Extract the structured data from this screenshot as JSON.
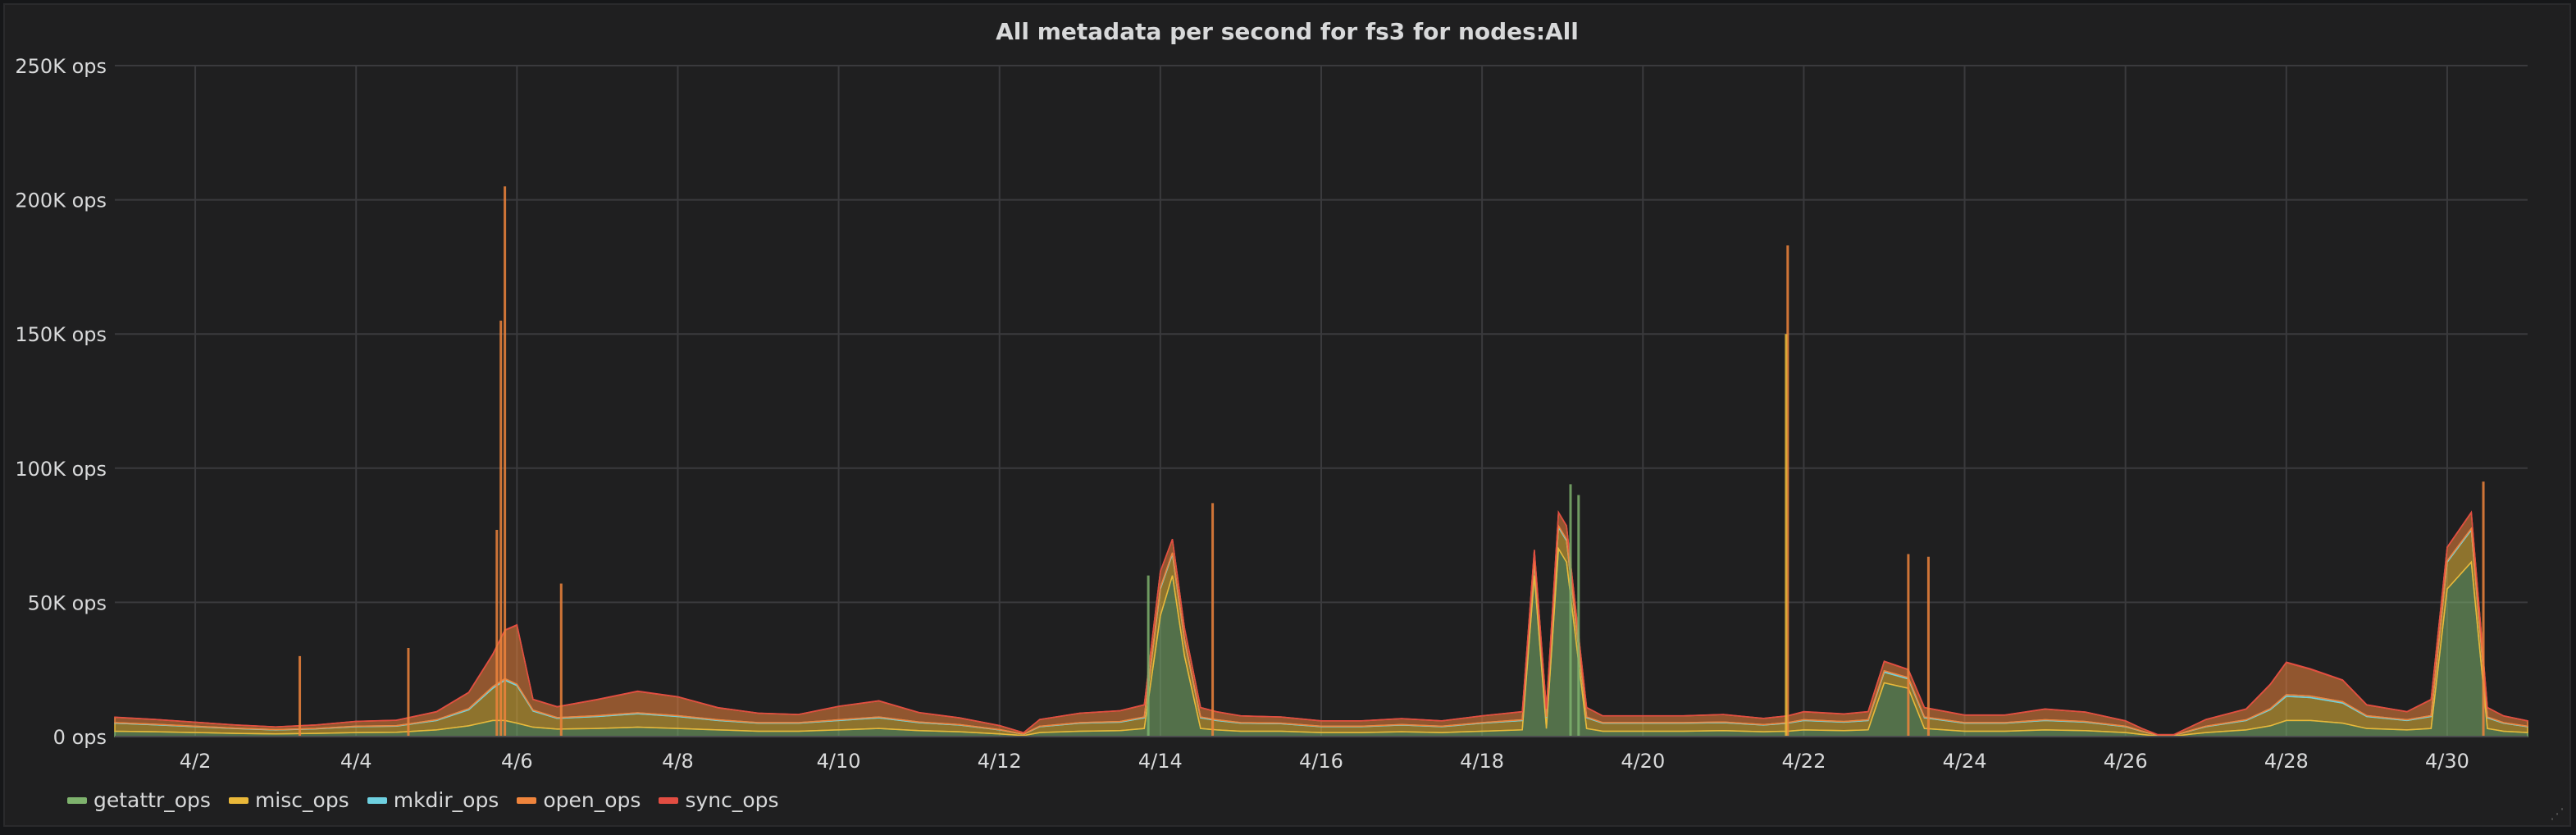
{
  "panel": {
    "title": "All metadata per second for fs3 for nodes:All"
  },
  "chart_data": {
    "type": "area",
    "stacked": true,
    "title": "All metadata per second for fs3 for nodes:All",
    "xlabel": "",
    "ylabel": "",
    "x_domain": [
      1.0,
      31.0
    ],
    "ylim": [
      0,
      250000
    ],
    "y_ticks": [
      {
        "value": 0,
        "label": "0 ops"
      },
      {
        "value": 50000,
        "label": "50K ops"
      },
      {
        "value": 100000,
        "label": "100K ops"
      },
      {
        "value": 150000,
        "label": "150K ops"
      },
      {
        "value": 200000,
        "label": "200K ops"
      },
      {
        "value": 250000,
        "label": "250K ops"
      }
    ],
    "x_ticks": [
      {
        "value": 2,
        "label": "4/2"
      },
      {
        "value": 4,
        "label": "4/4"
      },
      {
        "value": 6,
        "label": "4/6"
      },
      {
        "value": 8,
        "label": "4/8"
      },
      {
        "value": 10,
        "label": "4/10"
      },
      {
        "value": 12,
        "label": "4/12"
      },
      {
        "value": 14,
        "label": "4/14"
      },
      {
        "value": 16,
        "label": "4/16"
      },
      {
        "value": 18,
        "label": "4/18"
      },
      {
        "value": 20,
        "label": "4/20"
      },
      {
        "value": 22,
        "label": "4/22"
      },
      {
        "value": 24,
        "label": "4/24"
      },
      {
        "value": 26,
        "label": "4/26"
      },
      {
        "value": 28,
        "label": "4/28"
      },
      {
        "value": 30,
        "label": "4/30"
      }
    ],
    "grid": true,
    "legend_position": "bottom-left",
    "x": [
      1.0,
      1.5,
      2.0,
      2.5,
      3.0,
      3.5,
      4.0,
      4.5,
      5.0,
      5.4,
      5.7,
      5.85,
      6.0,
      6.2,
      6.5,
      7.0,
      7.5,
      8.0,
      8.5,
      9.0,
      9.5,
      10.0,
      10.5,
      11.0,
      11.5,
      12.0,
      12.3,
      12.5,
      13.0,
      13.5,
      13.8,
      14.0,
      14.15,
      14.3,
      14.5,
      14.7,
      15.0,
      15.5,
      16.0,
      16.5,
      17.0,
      17.5,
      18.0,
      18.5,
      18.65,
      18.8,
      18.95,
      19.05,
      19.3,
      19.5,
      20.0,
      20.5,
      21.0,
      21.5,
      21.8,
      22.0,
      22.5,
      22.8,
      23.0,
      23.3,
      23.5,
      24.0,
      24.5,
      25.0,
      25.5,
      26.0,
      26.2,
      26.4,
      26.6,
      27.0,
      27.5,
      27.8,
      28.0,
      28.3,
      28.7,
      29.0,
      29.5,
      29.8,
      30.0,
      30.3,
      30.5,
      30.7,
      31.0
    ],
    "series": [
      {
        "name": "getattr_ops",
        "color": "#7eb26d",
        "values": [
          2000,
          1800,
          1500,
          1200,
          1000,
          1200,
          1500,
          1600,
          2500,
          4000,
          6000,
          6000,
          5000,
          3500,
          2800,
          3000,
          3500,
          3000,
          2500,
          2000,
          2000,
          2500,
          3000,
          2200,
          1800,
          1000,
          400,
          1500,
          2000,
          2200,
          3000,
          45000,
          60000,
          30000,
          3000,
          2500,
          2000,
          2000,
          1500,
          1500,
          1800,
          1500,
          2000,
          2500,
          60000,
          3000,
          70000,
          65000,
          3000,
          2000,
          2000,
          2000,
          2200,
          1800,
          2000,
          2500,
          2200,
          2500,
          20000,
          18000,
          3000,
          2000,
          2000,
          2500,
          2200,
          1500,
          800,
          200,
          200,
          1500,
          2500,
          4000,
          6000,
          6000,
          5000,
          3000,
          2500,
          3000,
          55000,
          65000,
          3000,
          2000,
          1500
        ]
      },
      {
        "name": "misc_ops",
        "color": "#eab839",
        "values": [
          3000,
          2600,
          2200,
          1800,
          1500,
          1700,
          2200,
          2300,
          3500,
          6000,
          12000,
          15000,
          14000,
          6000,
          4000,
          4500,
          5000,
          4500,
          3500,
          3000,
          3000,
          3500,
          4000,
          3000,
          2500,
          1500,
          500,
          2200,
          3000,
          3200,
          4000,
          10000,
          8000,
          6000,
          4000,
          3500,
          3000,
          2800,
          2200,
          2200,
          2500,
          2200,
          3000,
          3500,
          5000,
          4000,
          8000,
          8000,
          4000,
          3000,
          3000,
          3000,
          3000,
          2500,
          3000,
          3500,
          3200,
          3500,
          4000,
          3500,
          4000,
          3000,
          3000,
          3500,
          3200,
          2200,
          1200,
          300,
          300,
          2200,
          3500,
          6000,
          9000,
          8500,
          7500,
          4500,
          3500,
          4500,
          10000,
          12000,
          4000,
          3000,
          2200
        ]
      },
      {
        "name": "mkdir_ops",
        "color": "#6ed0e0",
        "values": [
          200,
          180,
          150,
          120,
          100,
          120,
          150,
          160,
          250,
          400,
          600,
          600,
          500,
          350,
          280,
          300,
          350,
          300,
          250,
          200,
          200,
          250,
          300,
          220,
          180,
          100,
          40,
          150,
          200,
          220,
          300,
          500,
          500,
          400,
          300,
          250,
          200,
          200,
          150,
          150,
          180,
          150,
          200,
          250,
          500,
          300,
          500,
          500,
          300,
          200,
          200,
          200,
          220,
          180,
          200,
          250,
          220,
          250,
          500,
          450,
          300,
          200,
          200,
          250,
          220,
          150,
          80,
          20,
          20,
          150,
          250,
          400,
          600,
          600,
          500,
          300,
          250,
          300,
          500,
          500,
          300,
          200,
          150
        ]
      },
      {
        "name": "open_ops",
        "color": "#ef843c",
        "values": [
          2000,
          1800,
          1500,
          1200,
          1000,
          1300,
          1800,
          2000,
          3000,
          6000,
          12000,
          18000,
          22000,
          4000,
          4000,
          6000,
          8000,
          7000,
          4500,
          3500,
          3000,
          5000,
          6000,
          3500,
          2500,
          1500,
          500,
          2500,
          3500,
          4000,
          4500,
          6000,
          5000,
          4000,
          3500,
          3000,
          2500,
          2300,
          2000,
          2000,
          2200,
          2000,
          2500,
          3000,
          4000,
          3000,
          5000,
          5000,
          3500,
          2500,
          2500,
          2500,
          2800,
          2300,
          2500,
          3000,
          2800,
          3000,
          3500,
          3000,
          3500,
          2800,
          2800,
          4000,
          3500,
          2000,
          1000,
          200,
          200,
          2500,
          4000,
          9000,
          12000,
          10000,
          8000,
          4000,
          3000,
          6000,
          5000,
          6000,
          3500,
          2500,
          2000
        ]
      },
      {
        "name": "sync_ops",
        "color": "#e24d42",
        "values": [
          50,
          50,
          40,
          30,
          30,
          30,
          40,
          40,
          60,
          100,
          150,
          150,
          150,
          80,
          70,
          80,
          90,
          80,
          60,
          50,
          50,
          60,
          70,
          50,
          40,
          30,
          10,
          40,
          50,
          50,
          70,
          100,
          100,
          80,
          60,
          50,
          50,
          40,
          40,
          40,
          40,
          40,
          50,
          60,
          100,
          60,
          100,
          100,
          60,
          50,
          50,
          50,
          50,
          40,
          50,
          60,
          50,
          60,
          100,
          80,
          60,
          50,
          50,
          60,
          50,
          40,
          20,
          5,
          5,
          40,
          60,
          100,
          150,
          150,
          120,
          70,
          60,
          70,
          100,
          100,
          60,
          50,
          40
        ]
      }
    ],
    "spikes": [
      {
        "x": 5.85,
        "y": 205000,
        "color": "#ef843c"
      },
      {
        "x": 5.8,
        "y": 155000,
        "color": "#ef843c"
      },
      {
        "x": 5.75,
        "y": 77000,
        "color": "#ef843c"
      },
      {
        "x": 6.55,
        "y": 57000,
        "color": "#ef843c"
      },
      {
        "x": 14.65,
        "y": 87000,
        "color": "#ef843c"
      },
      {
        "x": 21.8,
        "y": 183000,
        "color": "#ef843c"
      },
      {
        "x": 21.78,
        "y": 150000,
        "color": "#eab839"
      },
      {
        "x": 23.3,
        "y": 68000,
        "color": "#ef843c"
      },
      {
        "x": 23.55,
        "y": 67000,
        "color": "#ef843c"
      },
      {
        "x": 13.85,
        "y": 60000,
        "color": "#7eb26d"
      },
      {
        "x": 19.1,
        "y": 94000,
        "color": "#7eb26d"
      },
      {
        "x": 19.2,
        "y": 90000,
        "color": "#7eb26d"
      },
      {
        "x": 30.45,
        "y": 95000,
        "color": "#ef843c"
      },
      {
        "x": 3.3,
        "y": 30000,
        "color": "#ef843c"
      },
      {
        "x": 4.65,
        "y": 33000,
        "color": "#ef843c"
      }
    ]
  }
}
